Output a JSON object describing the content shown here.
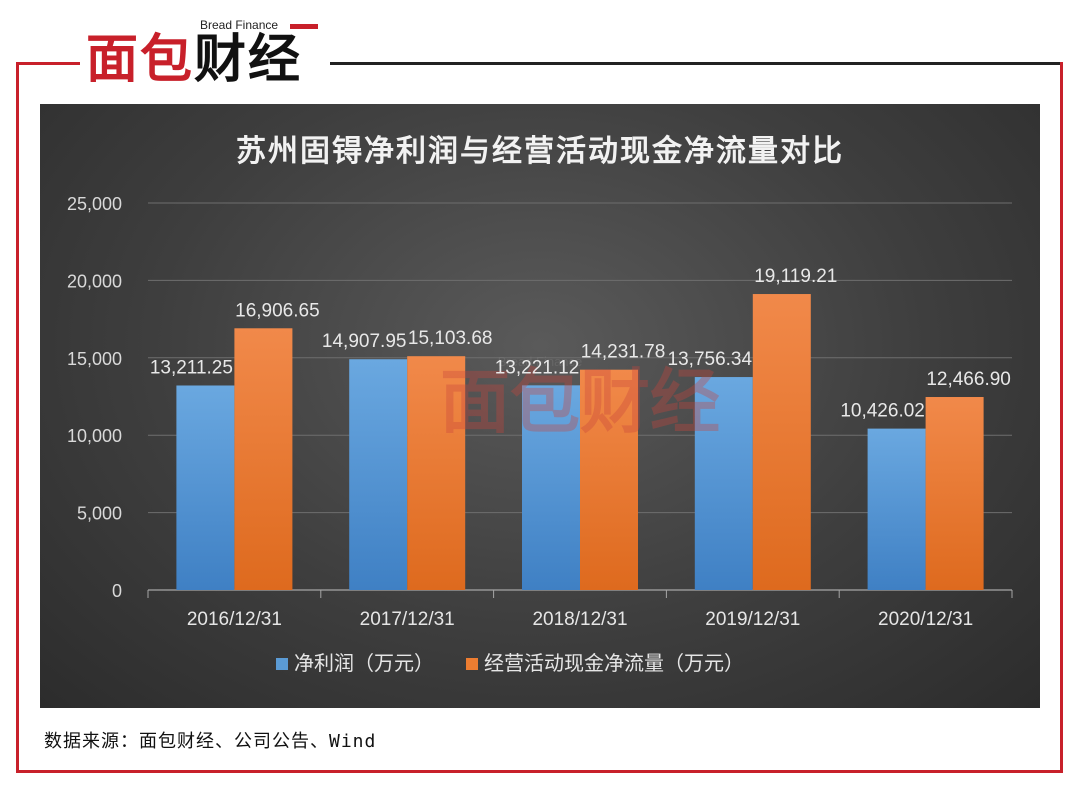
{
  "logo": {
    "en": "Bread Finance",
    "cn_part1": "面包",
    "cn_part2": "财经"
  },
  "watermark": {
    "en": "Bread Finance",
    "cn": "面包财经"
  },
  "source": "数据来源：面包财经、公司公告、Wind",
  "colors": {
    "frame": "#c8202a",
    "net_profit": "#5b9bd5",
    "cash_flow": "#ed7d31"
  },
  "chart_data": {
    "type": "bar",
    "title": "苏州固锝净利润与经营活动现金净流量对比",
    "categories": [
      "2016/12/31",
      "2017/12/31",
      "2018/12/31",
      "2019/12/31",
      "2020/12/31"
    ],
    "series": [
      {
        "name": "净利润（万元）",
        "values": [
          13211.25,
          14907.95,
          13221.12,
          13756.34,
          10426.02
        ],
        "labels": [
          "13,211.25",
          "14,907.95",
          "13,221.12",
          "13,756.34",
          "10,426.02"
        ]
      },
      {
        "name": "经营活动现金净流量（万元）",
        "values": [
          16906.65,
          15103.68,
          14231.78,
          19119.21,
          12466.9
        ],
        "labels": [
          "16,906.65",
          "15,103.68",
          "14,231.78",
          "19,119.21",
          "12,466.90"
        ]
      }
    ],
    "ylim": [
      0,
      25000
    ],
    "yticks": [
      0,
      5000,
      10000,
      15000,
      20000,
      25000
    ],
    "ytick_labels": [
      "0",
      "5,000",
      "10,000",
      "15,000",
      "20,000",
      "25,000"
    ],
    "grid": true,
    "legend": "bottom"
  }
}
